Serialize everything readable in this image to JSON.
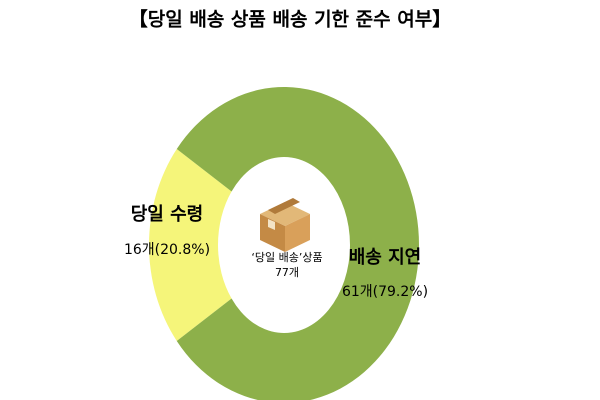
{
  "chart_data": {
    "type": "donut",
    "title": "【당일 배송 상품 배송 기한 준수 여부】",
    "categories": [
      "당일 수령",
      "배송 지연"
    ],
    "values": [
      16,
      61
    ],
    "value_labels": [
      "16개(20.8%)",
      "61개(79.2%)"
    ],
    "colors": [
      "#f5f57a",
      "#8db04a"
    ],
    "center_text": [
      "‘당일 배송’상품",
      "77개"
    ]
  }
}
